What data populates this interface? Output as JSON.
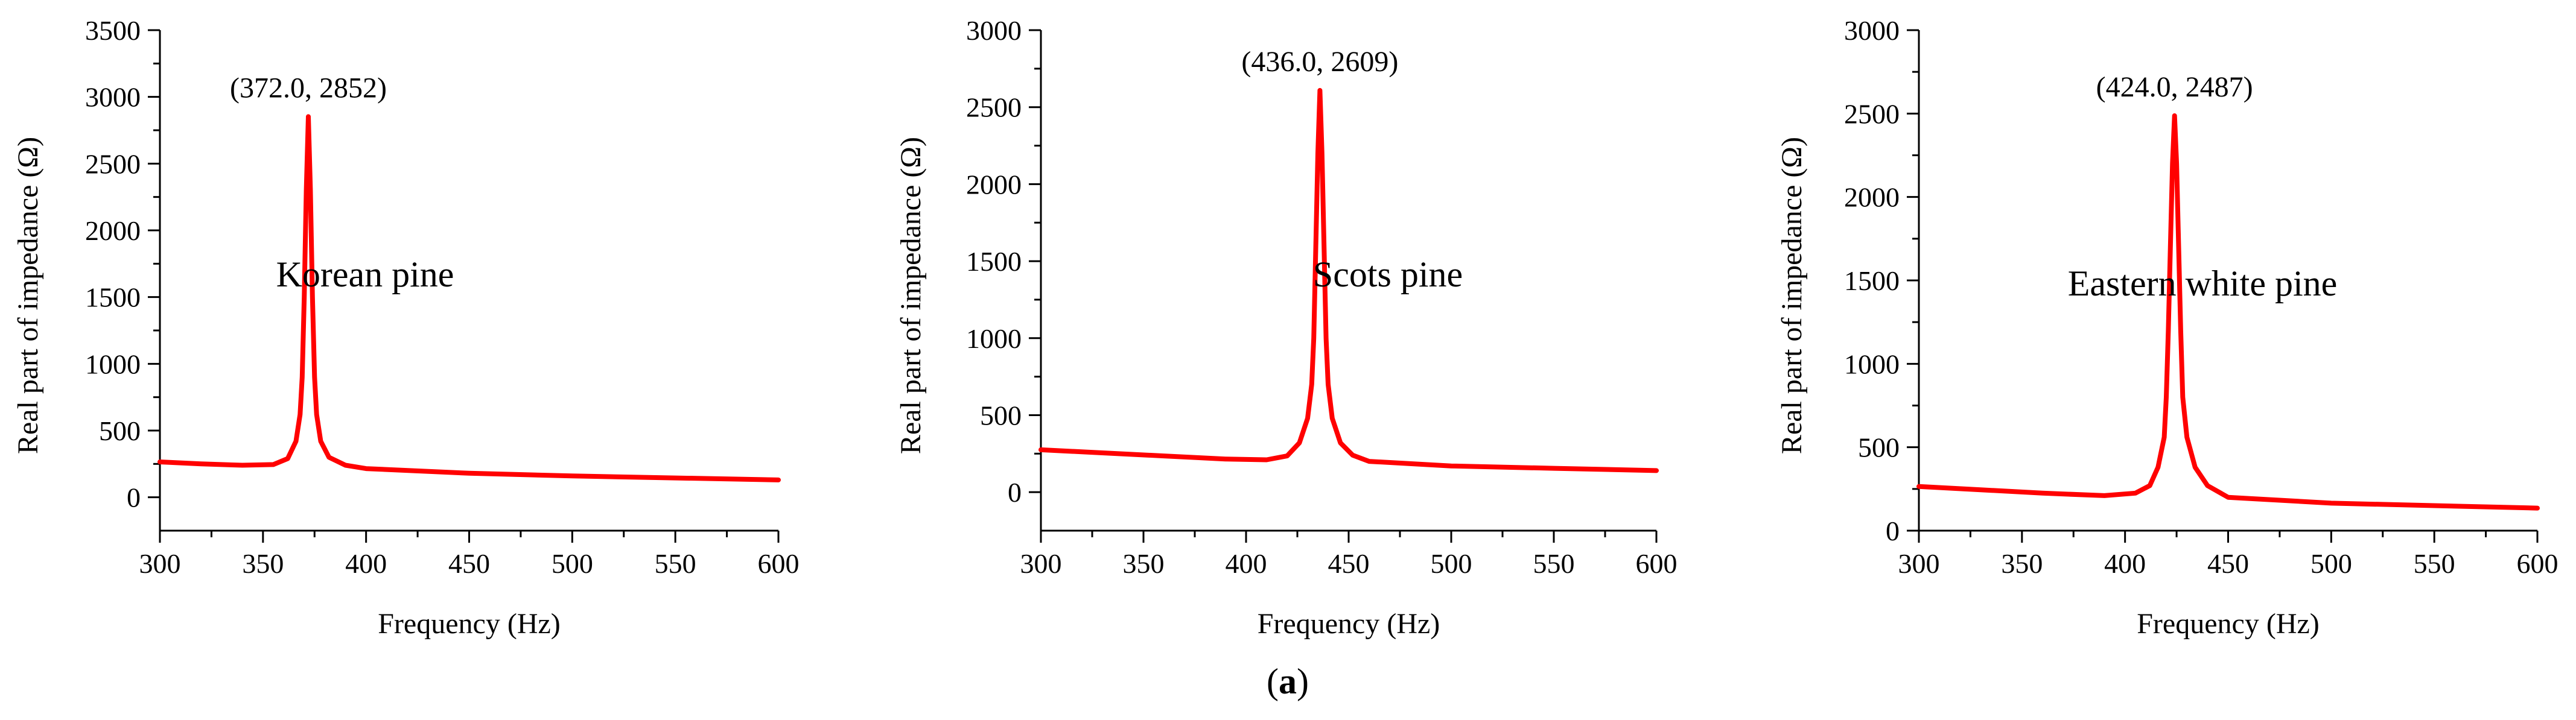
{
  "figure": {
    "label_open": "(",
    "label_letter": "a",
    "label_close": ")"
  },
  "chart_data": [
    {
      "type": "line",
      "title": "",
      "xlabel": "Frequency (Hz)",
      "ylabel": "Real part of impedance (Ω)",
      "xlim": [
        300,
        600
      ],
      "ylim": [
        -250,
        3500
      ],
      "xticks": [
        300,
        350,
        400,
        450,
        500,
        550,
        600
      ],
      "yticks": [
        0,
        500,
        1000,
        1500,
        2000,
        2500,
        3000,
        3500
      ],
      "annotation_text": "Korean pine",
      "peak_label": "(372.0,  2852)",
      "peak": {
        "x": 372.0,
        "y": 2852
      },
      "line_color": "#ff0000",
      "series": [
        {
          "x": [
            300,
            320,
            340,
            355,
            362,
            366,
            368,
            369,
            370,
            371,
            372,
            373,
            374,
            375,
            376,
            378,
            382,
            390,
            400,
            450,
            500,
            550,
            600
          ],
          "y": [
            265,
            250,
            240,
            245,
            290,
            420,
            620,
            900,
            1500,
            2300,
            2852,
            2300,
            1500,
            900,
            620,
            420,
            300,
            240,
            215,
            180,
            160,
            145,
            130
          ]
        }
      ]
    },
    {
      "type": "line",
      "title": "",
      "xlabel": "Frequency (Hz)",
      "ylabel": "Real part of impedance (Ω)",
      "xlim": [
        300,
        600
      ],
      "ylim": [
        -250,
        3000
      ],
      "xticks": [
        300,
        350,
        400,
        450,
        500,
        550,
        600
      ],
      "yticks": [
        0,
        500,
        1000,
        1500,
        2000,
        2500,
        3000
      ],
      "annotation_text": "Scots pine",
      "peak_label": "(436.0,  2609)",
      "peak": {
        "x": 436.0,
        "y": 2609
      },
      "line_color": "#ff0000",
      "series": [
        {
          "x": [
            300,
            330,
            360,
            390,
            410,
            420,
            426,
            430,
            432,
            433,
            434,
            435,
            436,
            437,
            438,
            439,
            440,
            442,
            446,
            452,
            460,
            500,
            550,
            600
          ],
          "y": [
            275,
            255,
            235,
            215,
            210,
            235,
            320,
            480,
            700,
            1000,
            1600,
            2200,
            2609,
            2200,
            1600,
            1000,
            700,
            480,
            320,
            240,
            200,
            170,
            155,
            140
          ]
        }
      ]
    },
    {
      "type": "line",
      "title": "",
      "xlabel": "Frequency (Hz)",
      "ylabel": "Real part of impedance (Ω)",
      "xlim": [
        300,
        600
      ],
      "ylim": [
        0,
        3000
      ],
      "xticks": [
        300,
        350,
        400,
        450,
        500,
        550,
        600
      ],
      "yticks": [
        0,
        500,
        1000,
        1500,
        2000,
        2500,
        3000
      ],
      "annotation_text": "Eastern white pine",
      "peak_label": "(424.0,  2487)",
      "peak": {
        "x": 424.0,
        "y": 2487
      },
      "line_color": "#ff0000",
      "series": [
        {
          "x": [
            300,
            330,
            360,
            390,
            405,
            412,
            416,
            419,
            420,
            421,
            422,
            423,
            424,
            425,
            426,
            427,
            428,
            430,
            434,
            440,
            450,
            500,
            550,
            600
          ],
          "y": [
            265,
            245,
            225,
            210,
            225,
            270,
            380,
            560,
            800,
            1200,
            1700,
            2200,
            2487,
            2200,
            1700,
            1200,
            800,
            560,
            380,
            270,
            200,
            165,
            150,
            135
          ]
        }
      ]
    }
  ]
}
